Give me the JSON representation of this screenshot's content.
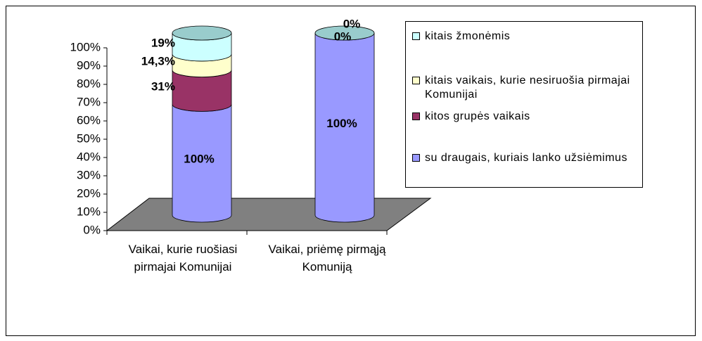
{
  "chart_data": {
    "type": "bar",
    "stack": "percent",
    "categories": [
      "Vaikai, kurie ruošiasi pirmajai Komunijai",
      "Vaikai, priėmę pirmąją Komuniją"
    ],
    "series": [
      {
        "name": "su draugais, kuriais lanko užsiėmimus",
        "color": "#9999ff",
        "values": [
          100,
          100
        ],
        "value_labels": [
          "100%",
          "100%"
        ]
      },
      {
        "name": "kitos grupės vaikais",
        "color": "#993366",
        "values": [
          31,
          null
        ],
        "value_labels": [
          "31%",
          null
        ]
      },
      {
        "name": "kitais vaikais, kurie nesiruošia pirmajai Komunijai",
        "color": "#ffffcc",
        "values": [
          14.3,
          0
        ],
        "value_labels": [
          "14,3%",
          "0%"
        ]
      },
      {
        "name": "kitais žmonėmis",
        "color": "#ccffff",
        "values": [
          19,
          0
        ],
        "value_labels": [
          "19%",
          "0%"
        ]
      }
    ],
    "ylim": [
      0,
      100
    ],
    "yticks": [
      {
        "value": 0,
        "label": "0%"
      },
      {
        "value": 10,
        "label": "10%"
      },
      {
        "value": 20,
        "label": "20%"
      },
      {
        "value": 30,
        "label": "30%"
      },
      {
        "value": 40,
        "label": "40%"
      },
      {
        "value": 50,
        "label": "50%"
      },
      {
        "value": 60,
        "label": "60%"
      },
      {
        "value": 70,
        "label": "70%"
      },
      {
        "value": 80,
        "label": "80%"
      },
      {
        "value": 90,
        "label": "90%"
      },
      {
        "value": 100,
        "label": "100%"
      }
    ],
    "legend": "right"
  }
}
